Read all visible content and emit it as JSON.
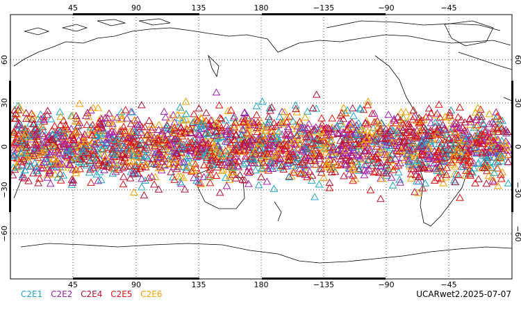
{
  "map": {
    "top_lon_labels": [
      "45",
      "90",
      "135",
      "180",
      "−135",
      "−90",
      "−45"
    ],
    "bottom_lon_labels": [
      "45",
      "90",
      "135",
      "180",
      "−135",
      "−90",
      "−45"
    ],
    "lat_labels": [
      "60",
      "30",
      "0",
      "−30",
      "−60"
    ],
    "marker_shape": "triangle-icon"
  },
  "legend": {
    "items": [
      {
        "label": "C2E1",
        "color": "#1fa6c2"
      },
      {
        "label": "C2E2",
        "color": "#a020b0"
      },
      {
        "label": "C2E4",
        "color": "#b01030"
      },
      {
        "label": "C2E5",
        "color": "#e01010"
      },
      {
        "label": "C2E6",
        "color": "#f0a000"
      }
    ]
  },
  "stamp": "UCARwet2.2025-07-07"
}
